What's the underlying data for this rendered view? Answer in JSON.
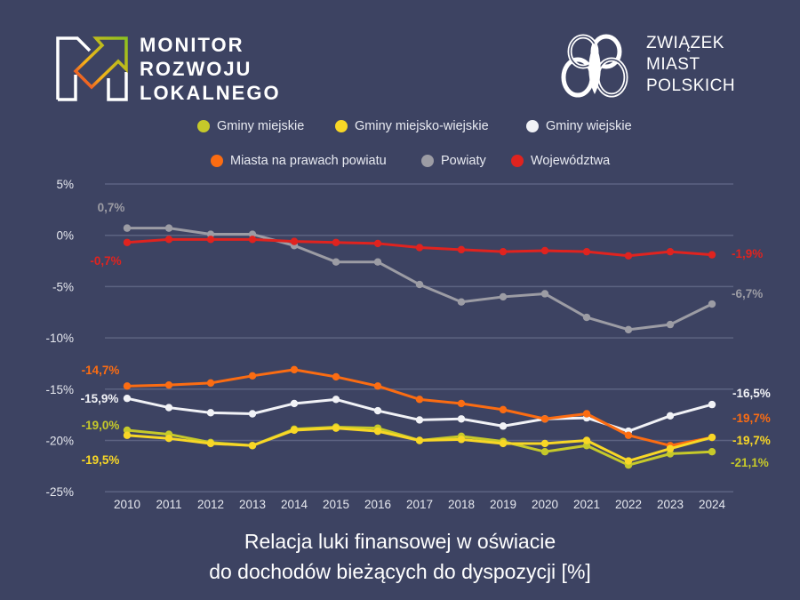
{
  "logos": {
    "monitor": {
      "lines": [
        "MONITOR",
        "ROZWOJU",
        "LOKALNEGO"
      ]
    },
    "zmp": {
      "lines": [
        "ZWIĄZEK",
        "MIAST",
        "POLSKICH"
      ]
    }
  },
  "colors": {
    "background": "#3d4362",
    "gridline": "#5c6381",
    "tick_text": "#e6e8ef"
  },
  "chart_data": {
    "type": "line",
    "title": "Relacja luki finansowej w oświacie do dochodów bieżących do dyspozycji [%]",
    "title_lines": [
      "Relacja luki finansowej w oświacie",
      "do dochodów bieżących do dyspozycji [%]"
    ],
    "xlabel": "",
    "ylabel": "",
    "categories": [
      "2010",
      "2011",
      "2012",
      "2013",
      "2014",
      "2015",
      "2016",
      "2017",
      "2018",
      "2019",
      "2020",
      "2021",
      "2022",
      "2023",
      "2024"
    ],
    "ylim": [
      -25,
      5
    ],
    "yticks": [
      {
        "value": 5,
        "label": "5%"
      },
      {
        "value": 0,
        "label": "0%"
      },
      {
        "value": -5,
        "label": "-5%"
      },
      {
        "value": -10,
        "label": "-10%"
      },
      {
        "value": -15,
        "label": "-15%"
      },
      {
        "value": -20,
        "label": "-20%"
      },
      {
        "value": -25,
        "label": "-25%"
      }
    ],
    "grid": true,
    "legend_position": "top",
    "series": [
      {
        "name": "Gminy miejskie",
        "color": "#c6c92a",
        "values": [
          -19.0,
          -19.4,
          -20.2,
          -20.5,
          -18.9,
          -18.7,
          -18.8,
          -20.0,
          -19.6,
          -20.1,
          -21.1,
          -20.5,
          -22.4,
          -21.3,
          -21.1
        ]
      },
      {
        "name": "Gminy miejsko-wiejskie",
        "color": "#f8d726",
        "values": [
          -19.5,
          -19.8,
          -20.3,
          -20.5,
          -19.0,
          -18.8,
          -19.1,
          -20.0,
          -19.9,
          -20.3,
          -20.3,
          -20.0,
          -22.0,
          -20.8,
          -19.7
        ]
      },
      {
        "name": "Gminy wiejskie",
        "color": "#f1f2f6",
        "values": [
          -15.9,
          -16.8,
          -17.3,
          -17.4,
          -16.4,
          -16.0,
          -17.1,
          -18.0,
          -17.9,
          -18.6,
          -17.9,
          -17.8,
          -19.1,
          -17.6,
          -16.5
        ]
      },
      {
        "name": "Miasta na prawach powiatu",
        "color": "#fb6c12",
        "values": [
          -14.7,
          -14.6,
          -14.4,
          -13.7,
          -13.1,
          -13.8,
          -14.7,
          -16.0,
          -16.4,
          -17.0,
          -17.9,
          -17.4,
          -19.5,
          -20.5,
          -19.7
        ]
      },
      {
        "name": "Powiaty",
        "color": "#9c9ca4",
        "values": [
          0.7,
          0.7,
          0.1,
          0.1,
          -1.0,
          -2.6,
          -2.6,
          -4.8,
          -6.5,
          -6.0,
          -5.7,
          -8.0,
          -9.2,
          -8.7,
          -6.7
        ]
      },
      {
        "name": "Województwa",
        "color": "#e0231f",
        "values": [
          -0.7,
          -0.4,
          -0.4,
          -0.4,
          -0.6,
          -0.7,
          -0.8,
          -1.2,
          -1.4,
          -1.6,
          -1.5,
          -1.6,
          -2.0,
          -1.6,
          -1.9
        ]
      }
    ],
    "annotations": [
      {
        "series": "Powiaty",
        "text": "0,7%"
      },
      {
        "series": "Województwa",
        "text": "-0,7%"
      },
      {
        "series": "Miasta na prawach powiatu",
        "text": "-14,7%"
      },
      {
        "series": "Gminy wiejskie",
        "text": "-15,9%"
      },
      {
        "series": "Gminy miejskie",
        "text": "-19,0%"
      },
      {
        "series": "Gminy miejsko-wiejskie",
        "text": "-19,5%"
      },
      {
        "series": "Województwa",
        "text": "-1,9%"
      },
      {
        "series": "Powiaty",
        "text": "-6,7%"
      },
      {
        "series": "Gminy wiejskie",
        "text": "-16,5%"
      },
      {
        "series": "Miasta na prawach powiatu",
        "text": "-19,7%"
      },
      {
        "series": "Gminy miejsko-wiejskie",
        "text": "-19,7%"
      },
      {
        "series": "Gminy miejskie",
        "text": "-21,1%"
      }
    ]
  }
}
